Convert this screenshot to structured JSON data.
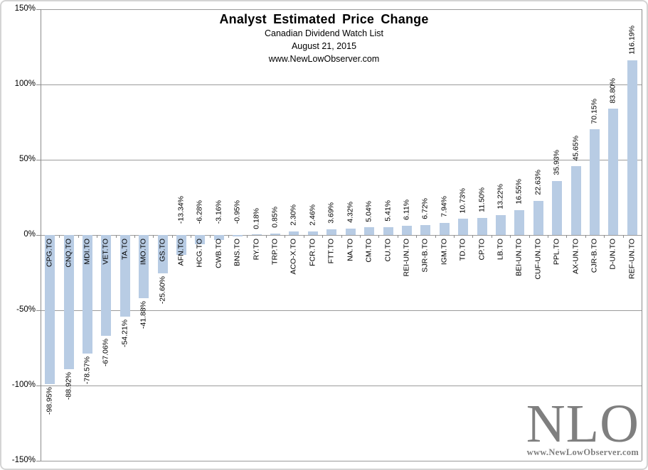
{
  "header": {
    "title": "Analyst Estimated Price Change",
    "subtitle1": "Canadian Dividend Watch List",
    "subtitle2": "August 21, 2015",
    "subtitle3": "www.NewLowObserver.com"
  },
  "logo": {
    "text": "NLO",
    "url": "www.NewLowObserver.com"
  },
  "chart_data": {
    "type": "bar",
    "title": "Analyst Estimated Price Change",
    "subtitle": [
      "Canadian Dividend Watch List",
      "August 21, 2015",
      "www.NewLowObserver.com"
    ],
    "categories": [
      "CPG.TO",
      "CNQ.TO",
      "MDI.TO",
      "VET.TO",
      "TA.TO",
      "IMO.TO",
      "GS.TO",
      "AFN.TO",
      "HCG.TO",
      "CWB.TO",
      "BNS.TO",
      "RY.TO",
      "TRP.TO",
      "ACO-X.TO",
      "FCR.TO",
      "FTT.TO",
      "NA.TO",
      "CM.TO",
      "CU.TO",
      "REI-UN.TO",
      "SJR-B.TO",
      "IGM.TO",
      "TD.TO",
      "CP.TO",
      "LB.TO",
      "BEI-UN.TO",
      "CUF-UN.TO",
      "PPL.TO",
      "AX-UN.TO",
      "CJR-B.TO",
      "D-UN.TO",
      "REF-UN.TO"
    ],
    "values": [
      -98.95,
      -88.92,
      -78.57,
      -67.06,
      -54.21,
      -41.88,
      -25.6,
      -13.34,
      -6.28,
      -3.16,
      -0.95,
      0.18,
      0.85,
      2.3,
      2.46,
      3.69,
      4.32,
      5.04,
      5.41,
      6.11,
      6.72,
      7.94,
      10.73,
      11.5,
      13.22,
      16.55,
      22.63,
      35.93,
      45.65,
      70.15,
      83.8,
      116.19
    ],
    "value_labels": [
      "-98.95%",
      "-88.92%",
      "-78.57%",
      "-67.06%",
      "-54.21%",
      "-41.88%",
      "-25.60%",
      "-13.34%",
      "-6.28%",
      "-3.16%",
      "-0.95%",
      "0.18%",
      "0.85%",
      "2.30%",
      "2.46%",
      "3.69%",
      "4.32%",
      "5.04%",
      "5.41%",
      "6.11%",
      "6.72%",
      "7.94%",
      "10.73%",
      "11.50%",
      "13.22%",
      "16.55%",
      "22.63%",
      "35.93%",
      "45.65%",
      "70.15%",
      "83.80%",
      "116.19%"
    ],
    "xlabel": "",
    "ylabel": "",
    "ylim": [
      -150,
      150
    ],
    "yticks": [
      150,
      100,
      50,
      0,
      -50,
      -100,
      -150
    ],
    "ytick_labels": [
      "150%",
      "100%",
      "50%",
      "0%",
      "-50%",
      "-100%",
      "-150%"
    ],
    "grid": true,
    "legend": "none",
    "colors": {
      "bar": "#b8cce4",
      "grid": "#9b9b9b",
      "axis": "#8c8c8c",
      "text": "#000000",
      "logo": "#7f7f7f",
      "border": "#d4d4d4"
    }
  }
}
